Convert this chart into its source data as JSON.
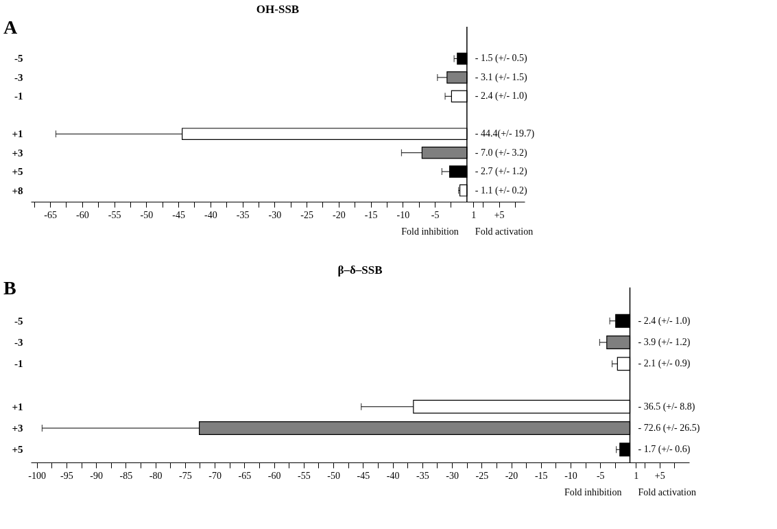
{
  "chart_data": [
    {
      "type": "bar",
      "orientation": "horizontal",
      "title": "OH-SSB",
      "annotations": [
        "A",
        "Fold inhibition",
        "Fold activation"
      ],
      "categories": [
        "-5",
        "-3",
        "-1",
        null,
        "+1",
        "+3",
        "+5",
        "+8"
      ],
      "values": [
        -1.5,
        -3.1,
        -2.4,
        null,
        -44.4,
        -7.0,
        -2.7,
        -1.1
      ],
      "colors": [
        "#000000",
        "#7f7f7f",
        "#ffffff",
        null,
        "#ffffff",
        "#7f7f7f",
        "#000000",
        "#ffffff"
      ],
      "errors": [
        [
          -2.0,
          -1.5
        ],
        [
          -4.6,
          -3.1
        ],
        [
          -3.4,
          -2.4
        ],
        null,
        [
          -64.1,
          -44.4
        ],
        [
          -10.2,
          -7.0
        ],
        [
          -3.9,
          -2.7
        ],
        [
          -1.3,
          -1.1
        ]
      ],
      "value_labels": [
        "-  1.5 (+/- 0.5)",
        "-  3.1 (+/- 1.5)",
        "-  2.4 (+/- 1.0)",
        null,
        "- 44.4(+/- 19.7)",
        "-  7.0 (+/- 3.2)",
        "-  2.7 (+/- 1.2)",
        "-  1.1 (+/- 0.2)"
      ],
      "ref_lines": [
        {
          "axis": "x",
          "value": 0,
          "color": "#000000"
        }
      ],
      "xlim": [
        -68,
        9
      ],
      "xticks": [
        {
          "value": -67.5,
          "label": null
        },
        -65,
        {
          "value": -62.5,
          "label": null
        },
        -60,
        {
          "value": -57.5,
          "label": null
        },
        -55,
        {
          "value": -52.5,
          "label": null
        },
        -50,
        {
          "value": -47.5,
          "label": null
        },
        -45,
        {
          "value": -42.5,
          "label": null
        },
        -40,
        {
          "value": -37.5,
          "label": null
        },
        -35,
        {
          "value": -32.5,
          "label": null
        },
        -30,
        {
          "value": -27.5,
          "label": null
        },
        -25,
        {
          "value": -22.5,
          "label": null
        },
        -20,
        {
          "value": -17.5,
          "label": null
        },
        -15,
        {
          "value": -12.5,
          "label": null
        },
        -10,
        {
          "value": -7.5,
          "label": null
        },
        -5,
        {
          "value": -2.5,
          "label": null
        },
        1,
        {
          "value": 2.5,
          "label": null
        },
        {
          "value": 5,
          "label": "+5"
        },
        {
          "value": 7.5,
          "label": null
        }
      ]
    },
    {
      "type": "bar",
      "orientation": "horizontal",
      "title": "β–δ–SSB",
      "annotations": [
        "B",
        "Fold inhibition",
        "Fold activation"
      ],
      "categories": [
        "-5",
        "-3",
        "-1",
        null,
        "+1",
        "+3",
        "+5"
      ],
      "values": [
        -2.4,
        -3.9,
        -2.1,
        null,
        -36.5,
        -72.6,
        -1.7
      ],
      "colors": [
        "#000000",
        "#7f7f7f",
        "#ffffff",
        null,
        "#ffffff",
        "#7f7f7f",
        "#000000"
      ],
      "errors": [
        [
          -3.4,
          -2.4
        ],
        [
          -5.1,
          -3.9
        ],
        [
          -3.0,
          -2.1
        ],
        null,
        [
          -45.3,
          -36.5
        ],
        [
          -99.1,
          -72.6
        ],
        [
          -2.3,
          -1.7
        ]
      ],
      "value_labels": [
        "-  2.4 (+/- 1.0)",
        "-  3.9 (+/- 1.2)",
        "-  2.1 (+/- 0.9)",
        null,
        "- 36.5 (+/- 8.8)",
        "- 72.6 (+/- 26.5)",
        "-  1.7 (+/- 0.6)"
      ],
      "ref_lines": [
        {
          "axis": "x",
          "value": 0,
          "color": "#000000"
        }
      ],
      "xlim": [
        -101,
        10
      ],
      "xticks": [
        -100,
        {
          "value": -97.5,
          "label": null
        },
        -95,
        {
          "value": -92.5,
          "label": null
        },
        -90,
        {
          "value": -87.5,
          "label": null
        },
        -85,
        {
          "value": -82.5,
          "label": null
        },
        -80,
        {
          "value": -77.5,
          "label": null
        },
        -75,
        {
          "value": -72.5,
          "label": null
        },
        -70,
        {
          "value": -67.5,
          "label": null
        },
        -65,
        {
          "value": -62.5,
          "label": null
        },
        -60,
        {
          "value": -57.5,
          "label": null
        },
        -55,
        {
          "value": -52.5,
          "label": null
        },
        -50,
        {
          "value": -47.5,
          "label": null
        },
        -45,
        {
          "value": -42.5,
          "label": null
        },
        -40,
        {
          "value": -37.5,
          "label": null
        },
        -35,
        {
          "value": -32.5,
          "label": null
        },
        -30,
        {
          "value": -27.5,
          "label": null
        },
        -25,
        {
          "value": -22.5,
          "label": null
        },
        -20,
        {
          "value": -17.5,
          "label": null
        },
        -15,
        {
          "value": -12.5,
          "label": null
        },
        -10,
        {
          "value": -7.5,
          "label": null
        },
        -5,
        {
          "value": -2.5,
          "label": null
        },
        1,
        {
          "value": 2.5,
          "label": null
        },
        {
          "value": 5,
          "label": "+5"
        },
        {
          "value": 7.5,
          "label": null
        }
      ]
    }
  ]
}
